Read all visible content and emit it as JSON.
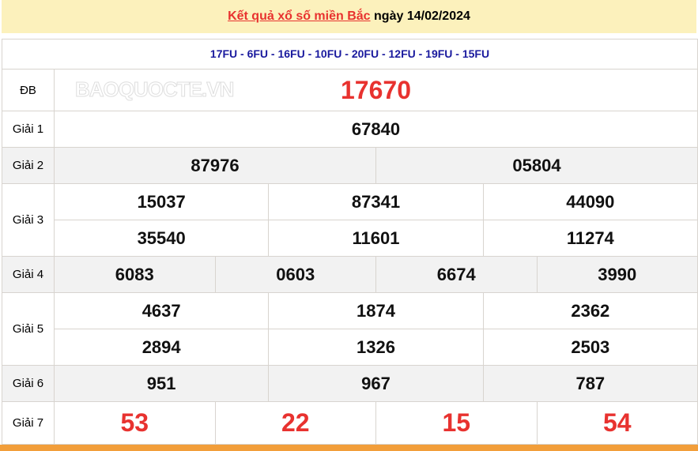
{
  "header": {
    "title_link": "Kết quả xổ số miền Bắc",
    "title_rest": "ngày 14/02/2024"
  },
  "codes": "17FU - 6FU - 16FU - 10FU - 20FU - 12FU - 19FU - 15FU",
  "prizes": [
    {
      "label": "ĐB",
      "lines": [
        [
          "17670"
        ]
      ]
    },
    {
      "label": "Giải 1",
      "lines": [
        [
          "67840"
        ]
      ]
    },
    {
      "label": "Giải 2",
      "lines": [
        [
          "87976",
          "05804"
        ]
      ]
    },
    {
      "label": "Giải 3",
      "lines": [
        [
          "15037",
          "87341",
          "44090"
        ],
        [
          "35540",
          "11601",
          "11274"
        ]
      ]
    },
    {
      "label": "Giải 4",
      "lines": [
        [
          "6083",
          "0603",
          "6674",
          "3990"
        ]
      ]
    },
    {
      "label": "Giải 5",
      "lines": [
        [
          "4637",
          "1874",
          "2362"
        ],
        [
          "2894",
          "1326",
          "2503"
        ]
      ]
    },
    {
      "label": "Giải 6",
      "lines": [
        [
          "951",
          "967",
          "787"
        ]
      ]
    },
    {
      "label": "Giải 7",
      "lines": [
        [
          "53",
          "22",
          "15",
          "54"
        ]
      ]
    }
  ],
  "watermark": "BAOQUOCTE.VN",
  "colors": {
    "accent_red": "#e8322f",
    "code_blue": "#1a1a9e",
    "title_bg": "#fcf1bc",
    "footer": "#f29e3a"
  }
}
